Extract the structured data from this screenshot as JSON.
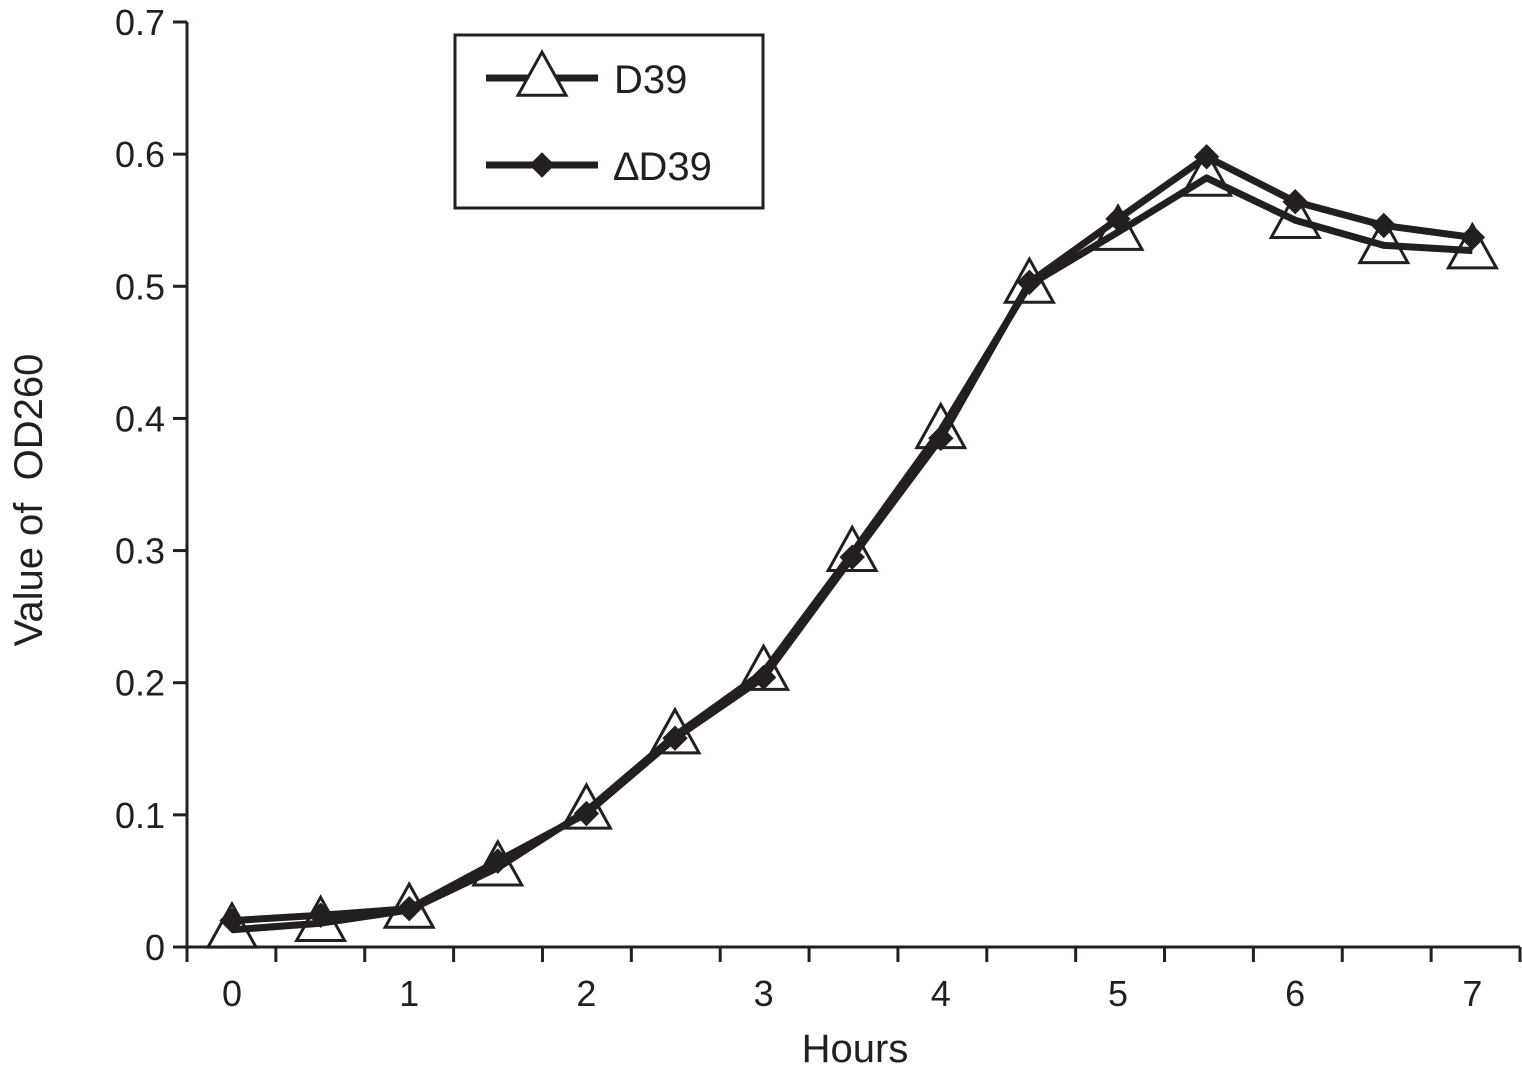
{
  "chart_data": {
    "type": "line",
    "title": "",
    "xlabel": "Hours",
    "ylabel": "Value of  OD260",
    "xlim": [
      0,
      7
    ],
    "ylim": [
      0,
      0.7
    ],
    "x_ticks": [
      "0",
      "1",
      "2",
      "3",
      "4",
      "5",
      "6",
      "7"
    ],
    "y_ticks": [
      "0",
      "0.1",
      "0.2",
      "0.3",
      "0.4",
      "0.5",
      "0.6",
      "0.7"
    ],
    "grid": false,
    "legend_position": "top-center",
    "x": [
      0,
      0.5,
      1,
      1.5,
      2,
      2.5,
      3,
      3.5,
      4,
      4.5,
      5,
      5.5,
      6,
      6.5,
      7
    ],
    "series": [
      {
        "name": "D39",
        "marker": "open-triangle",
        "values": [
          0.013,
          0.018,
          0.028,
          0.06,
          0.103,
          0.16,
          0.208,
          0.298,
          0.391,
          0.501,
          0.541,
          0.582,
          0.55,
          0.531,
          0.527
        ]
      },
      {
        "name": "∆D39",
        "marker": "filled-diamond",
        "values": [
          0.02,
          0.024,
          0.029,
          0.065,
          0.101,
          0.158,
          0.204,
          0.295,
          0.385,
          0.503,
          0.551,
          0.598,
          0.564,
          0.546,
          0.537
        ]
      }
    ],
    "colors": {
      "line": "#231f20",
      "background": "#ffffff"
    }
  }
}
